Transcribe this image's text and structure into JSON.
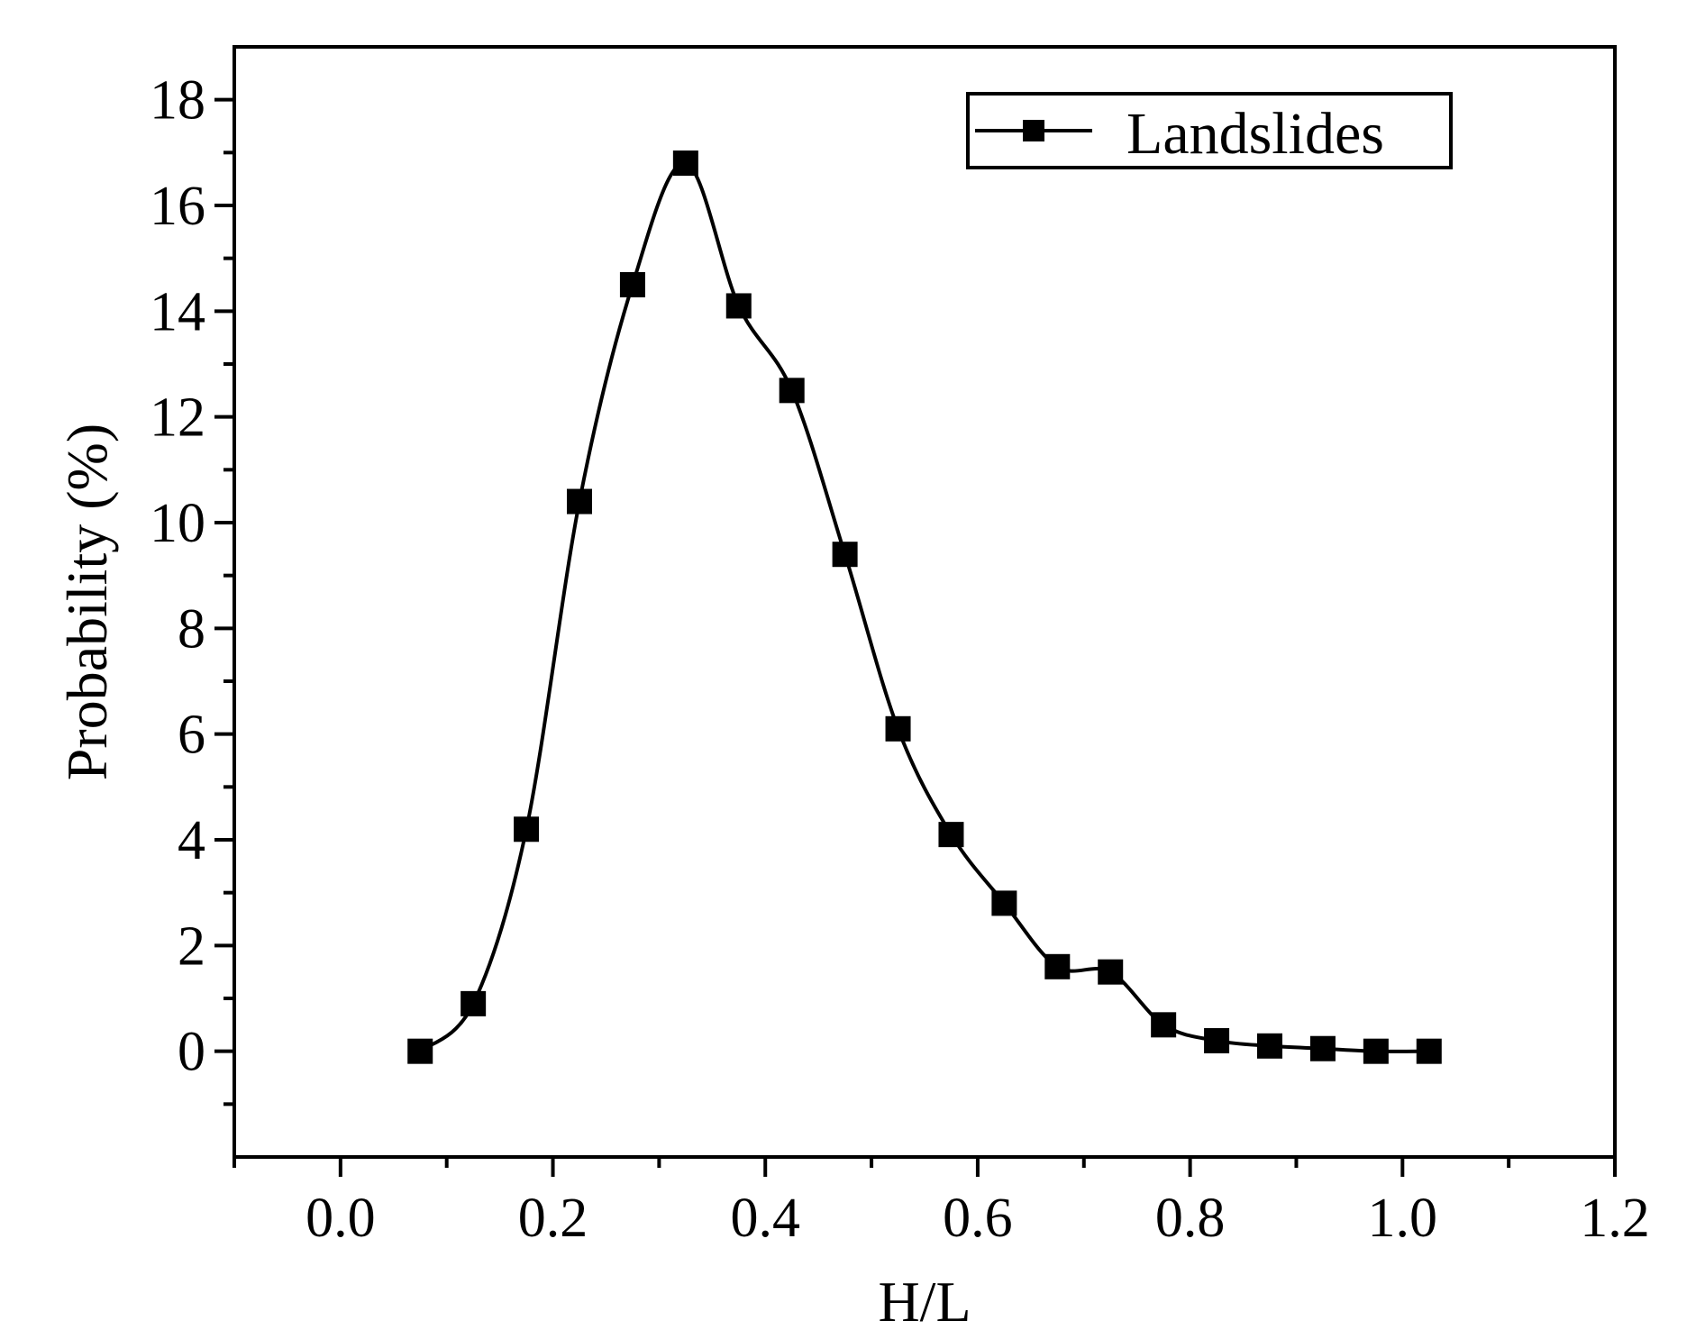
{
  "chart_data": {
    "type": "line",
    "title": "",
    "xlabel": "H/L",
    "ylabel": "Probability (%)",
    "xlim": [
      -0.1,
      1.2
    ],
    "ylim": [
      -2,
      19
    ],
    "x_ticks": [
      "0.0",
      "0.2",
      "0.4",
      "0.6",
      "0.8",
      "1.0",
      "1.2"
    ],
    "y_ticks": [
      "0",
      "2",
      "4",
      "6",
      "8",
      "10",
      "12",
      "14",
      "16",
      "18"
    ],
    "legend_position": "top-right",
    "grid": false,
    "series": [
      {
        "name": "Landslides",
        "color": "#000000",
        "marker": "square",
        "smooth": true,
        "x": [
          0.075,
          0.125,
          0.175,
          0.225,
          0.275,
          0.325,
          0.375,
          0.425,
          0.475,
          0.525,
          0.575,
          0.625,
          0.675,
          0.725,
          0.775,
          0.825,
          0.875,
          0.925,
          0.975,
          1.025
        ],
        "y": [
          0.0,
          0.9,
          4.2,
          10.4,
          14.5,
          16.8,
          14.1,
          12.5,
          9.4,
          6.1,
          4.1,
          2.8,
          1.6,
          1.5,
          0.5,
          0.2,
          0.1,
          0.05,
          0.0,
          0.0
        ]
      }
    ]
  }
}
